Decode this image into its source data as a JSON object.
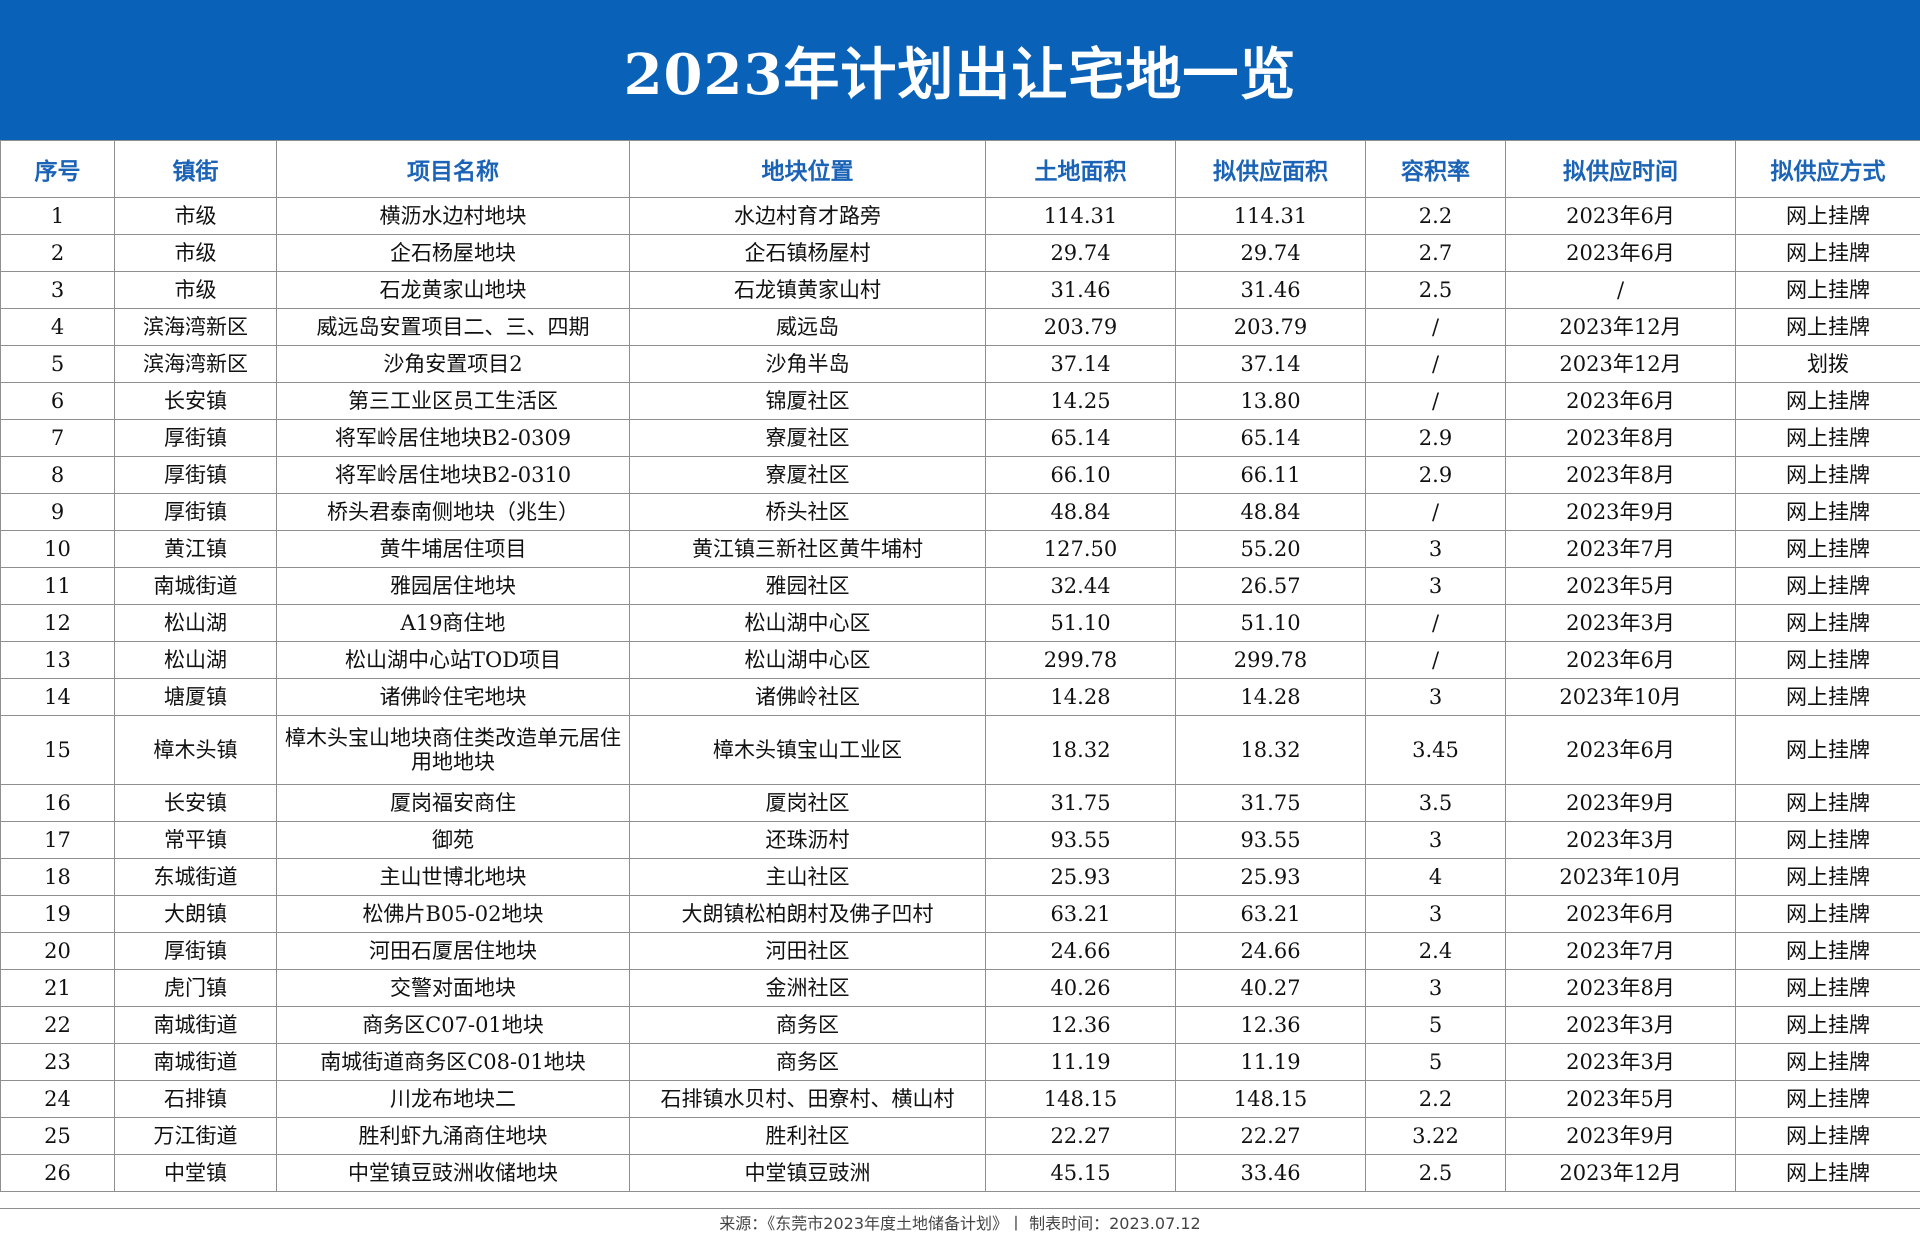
{
  "title": "2023年计划出让宅地一览",
  "columns": [
    "序号",
    "镇街",
    "项目名称",
    "地块位置",
    "土地面积",
    "拟供应面积",
    "容积率",
    "拟供应时间",
    "拟供应方式"
  ],
  "rows": [
    [
      "1",
      "市级",
      "横沥水边村地块",
      "水边村育才路旁",
      "114.31",
      "114.31",
      "2.2",
      "2023年6月",
      "网上挂牌"
    ],
    [
      "2",
      "市级",
      "企石杨屋地块",
      "企石镇杨屋村",
      "29.74",
      "29.74",
      "2.7",
      "2023年6月",
      "网上挂牌"
    ],
    [
      "3",
      "市级",
      "石龙黄家山地块",
      "石龙镇黄家山村",
      "31.46",
      "31.46",
      "2.5",
      "/",
      "网上挂牌"
    ],
    [
      "4",
      "滨海湾新区",
      "威远岛安置项目二、三、四期",
      "威远岛",
      "203.79",
      "203.79",
      "/",
      "2023年12月",
      "网上挂牌"
    ],
    [
      "5",
      "滨海湾新区",
      "沙角安置项目2",
      "沙角半岛",
      "37.14",
      "37.14",
      "/",
      "2023年12月",
      "划拨"
    ],
    [
      "6",
      "长安镇",
      "第三工业区员工生活区",
      "锦厦社区",
      "14.25",
      "13.80",
      "/",
      "2023年6月",
      "网上挂牌"
    ],
    [
      "7",
      "厚街镇",
      "将军岭居住地块B2-0309",
      "寮厦社区",
      "65.14",
      "65.14",
      "2.9",
      "2023年8月",
      "网上挂牌"
    ],
    [
      "8",
      "厚街镇",
      "将军岭居住地块B2-0310",
      "寮厦社区",
      "66.10",
      "66.11",
      "2.9",
      "2023年8月",
      "网上挂牌"
    ],
    [
      "9",
      "厚街镇",
      "桥头君泰南侧地块（兆生）",
      "桥头社区",
      "48.84",
      "48.84",
      "/",
      "2023年9月",
      "网上挂牌"
    ],
    [
      "10",
      "黄江镇",
      "黄牛埔居住项目",
      "黄江镇三新社区黄牛埔村",
      "127.50",
      "55.20",
      "3",
      "2023年7月",
      "网上挂牌"
    ],
    [
      "11",
      "南城街道",
      "雅园居住地块",
      "雅园社区",
      "32.44",
      "26.57",
      "3",
      "2023年5月",
      "网上挂牌"
    ],
    [
      "12",
      "松山湖",
      "A19商住地",
      "松山湖中心区",
      "51.10",
      "51.10",
      "/",
      "2023年3月",
      "网上挂牌"
    ],
    [
      "13",
      "松山湖",
      "松山湖中心站TOD项目",
      "松山湖中心区",
      "299.78",
      "299.78",
      "/",
      "2023年6月",
      "网上挂牌"
    ],
    [
      "14",
      "塘厦镇",
      "诸佛岭住宅地块",
      "诸佛岭社区",
      "14.28",
      "14.28",
      "3",
      "2023年10月",
      "网上挂牌"
    ],
    [
      "15",
      "樟木头镇",
      "樟木头宝山地块商住类改造单元居住用地地块",
      "樟木头镇宝山工业区",
      "18.32",
      "18.32",
      "3.45",
      "2023年6月",
      "网上挂牌"
    ],
    [
      "16",
      "长安镇",
      "厦岗福安商住",
      "厦岗社区",
      "31.75",
      "31.75",
      "3.5",
      "2023年9月",
      "网上挂牌"
    ],
    [
      "17",
      "常平镇",
      "御苑",
      "还珠沥村",
      "93.55",
      "93.55",
      "3",
      "2023年3月",
      "网上挂牌"
    ],
    [
      "18",
      "东城街道",
      "主山世博北地块",
      "主山社区",
      "25.93",
      "25.93",
      "4",
      "2023年10月",
      "网上挂牌"
    ],
    [
      "19",
      "大朗镇",
      "松佛片B05-02地块",
      "大朗镇松柏朗村及佛子凹村",
      "63.21",
      "63.21",
      "3",
      "2023年6月",
      "网上挂牌"
    ],
    [
      "20",
      "厚街镇",
      "河田石厦居住地块",
      "河田社区",
      "24.66",
      "24.66",
      "2.4",
      "2023年7月",
      "网上挂牌"
    ],
    [
      "21",
      "虎门镇",
      "交警对面地块",
      "金洲社区",
      "40.26",
      "40.27",
      "3",
      "2023年8月",
      "网上挂牌"
    ],
    [
      "22",
      "南城街道",
      "商务区C07-01地块",
      "商务区",
      "12.36",
      "12.36",
      "5",
      "2023年3月",
      "网上挂牌"
    ],
    [
      "23",
      "南城街道",
      "南城街道商务区C08-01地块",
      "商务区",
      "11.19",
      "11.19",
      "5",
      "2023年3月",
      "网上挂牌"
    ],
    [
      "24",
      "石排镇",
      "川龙布地块二",
      "石排镇水贝村、田寮村、横山村",
      "148.15",
      "148.15",
      "2.2",
      "2023年5月",
      "网上挂牌"
    ],
    [
      "25",
      "万江街道",
      "胜利虾九涌商住地块",
      "胜利社区",
      "22.27",
      "22.27",
      "3.22",
      "2023年9月",
      "网上挂牌"
    ],
    [
      "26",
      "中堂镇",
      "中堂镇豆豉洲收储地块",
      "中堂镇豆豉洲",
      "45.15",
      "33.46",
      "2.5",
      "2023年12月",
      "网上挂牌"
    ]
  ],
  "footer": "来源：《东莞市2023年度土地储备计划》丨 制表时间：2023.07.12",
  "colors": {
    "banner": "#0a62b8",
    "header_text": "#1b63b6"
  }
}
